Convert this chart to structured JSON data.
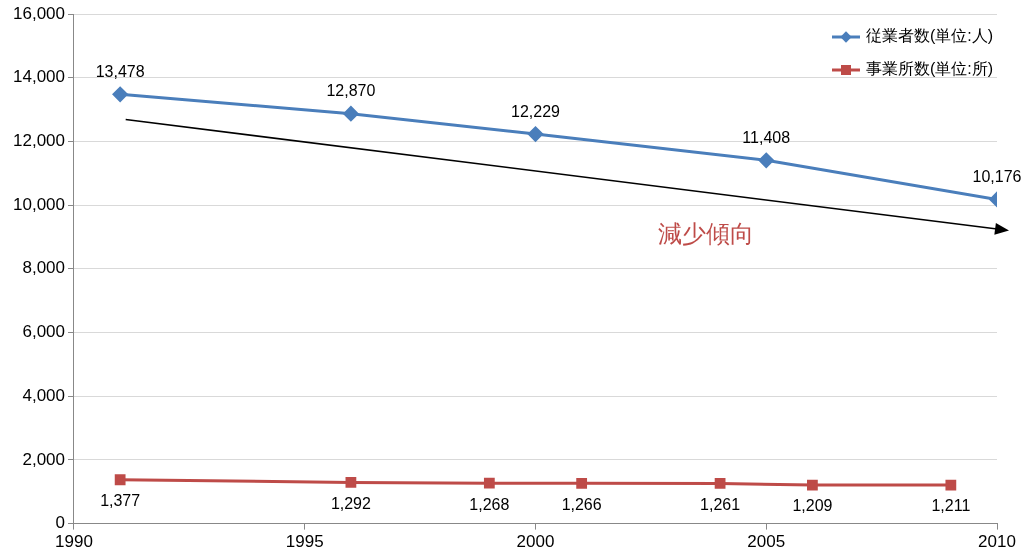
{
  "chart_data": {
    "type": "line",
    "xlim": [
      1990,
      2010
    ],
    "xticks": [
      1990,
      1995,
      2000,
      2005,
      2010
    ],
    "ylim": [
      0,
      16000
    ],
    "yticks": [
      {
        "value": 0,
        "label": "0"
      },
      {
        "value": 2000,
        "label": "2,000"
      },
      {
        "value": 4000,
        "label": "4,000"
      },
      {
        "value": 6000,
        "label": "6,000"
      },
      {
        "value": 8000,
        "label": "8,000"
      },
      {
        "value": 10000,
        "label": "10,000"
      },
      {
        "value": 12000,
        "label": "12,000"
      },
      {
        "value": 14000,
        "label": "14,000"
      },
      {
        "value": 16000,
        "label": "16,000"
      }
    ],
    "grid": "y",
    "legend": "top right",
    "line_style": "solid",
    "annotations": [
      "減少傾向"
    ],
    "series": [
      {
        "name": "従業者数(単位:人)",
        "color": "#4a7ebb",
        "marker": "diamond",
        "x": [
          1991,
          1996,
          2000,
          2005,
          2010
        ],
        "values": [
          13478,
          12870,
          12229,
          11408,
          10176
        ],
        "value_labels": [
          "13,478",
          "12,870",
          "12,229",
          "11,408",
          "10,176"
        ]
      },
      {
        "name": "事業所数(単位:所)",
        "color": "#be4b48",
        "marker": "square",
        "x": [
          1991,
          1996,
          1999,
          2001,
          2004,
          2006,
          2009
        ],
        "values": [
          1377,
          1292,
          1268,
          1266,
          1261,
          1209,
          1211
        ],
        "value_labels": [
          "1,377",
          "1,292",
          "1,268",
          "1,266",
          "1,261",
          "1,209",
          "1,211"
        ]
      }
    ]
  }
}
